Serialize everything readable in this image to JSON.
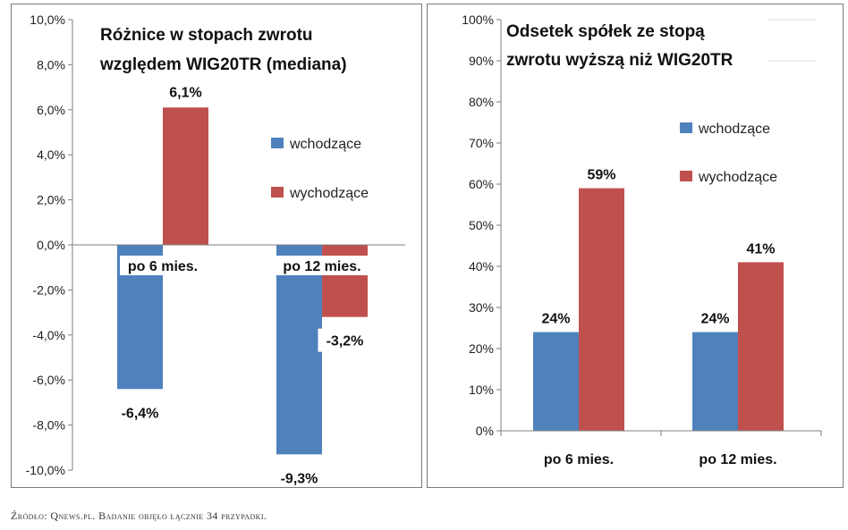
{
  "colors": {
    "wchodzace": "#4f81bd",
    "wychodzace": "#c0504d",
    "axis": "#7f7f7f",
    "grid": "#d9d9d9"
  },
  "source_note": "Źródło: Qnews.pl. Badanie objęło łącznie 34 przypadki.",
  "chart_data": [
    {
      "type": "bar",
      "title_lines": [
        "Różnice w stopach zwrotu",
        "względem WIG20TR (mediana)"
      ],
      "categories": [
        "po 6 mies.",
        "po 12 mies."
      ],
      "series": [
        {
          "name": "wchodzące",
          "values": [
            -6.4,
            -9.3
          ],
          "labels": [
            "-6,4%",
            "-9,3%"
          ]
        },
        {
          "name": "wychodzące",
          "values": [
            6.1,
            -3.2
          ],
          "labels": [
            "6,1%",
            "-3,2%"
          ]
        }
      ],
      "ylim": [
        -10,
        10
      ],
      "yticks": [
        10,
        8,
        6,
        4,
        2,
        0,
        -2,
        -4,
        -6,
        -8,
        -10
      ],
      "ytick_labels": [
        "10,0%",
        "8,0%",
        "6,0%",
        "4,0%",
        "2,0%",
        "0,0%",
        "-2,0%",
        "-4,0%",
        "-6,0%",
        "-8,0%",
        "-10,0%"
      ],
      "grid": false,
      "legend_position": "right"
    },
    {
      "type": "bar",
      "title_lines": [
        "Odsetek spółek ze stopą",
        "zwrotu wyższą niż WIG20TR"
      ],
      "categories": [
        "po 6 mies.",
        "po 12 mies."
      ],
      "series": [
        {
          "name": "wchodzące",
          "values": [
            24,
            24
          ],
          "labels": [
            "24%",
            "24%"
          ]
        },
        {
          "name": "wychodzące",
          "values": [
            59,
            41
          ],
          "labels": [
            "59%",
            "41%"
          ]
        }
      ],
      "ylim": [
        0,
        100
      ],
      "yticks": [
        100,
        90,
        80,
        70,
        60,
        50,
        40,
        30,
        20,
        10,
        0
      ],
      "ytick_labels": [
        "100%",
        "90%",
        "80%",
        "70%",
        "60%",
        "50%",
        "40%",
        "30%",
        "20%",
        "10%",
        "0%"
      ],
      "grid": false,
      "legend_position": "right"
    }
  ]
}
